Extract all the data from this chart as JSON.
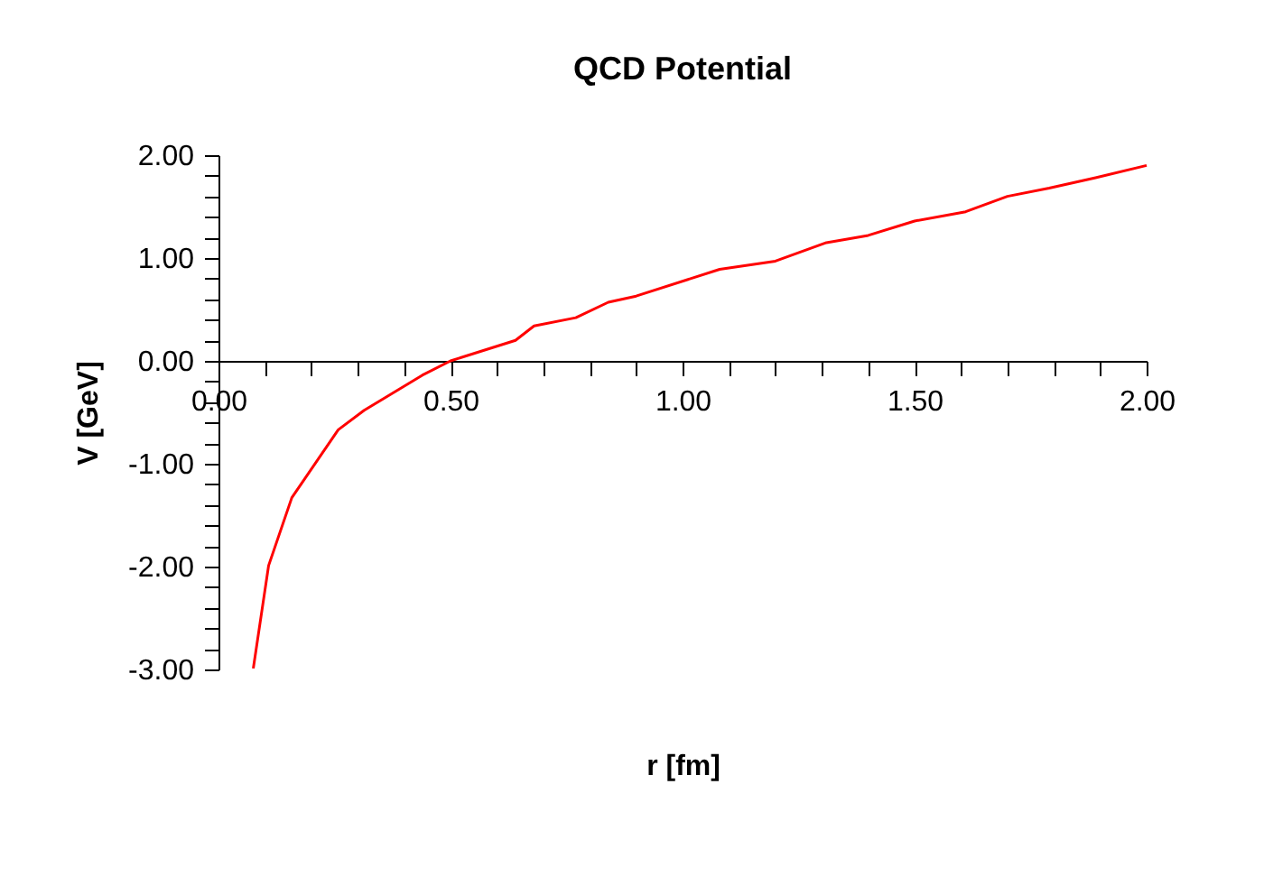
{
  "chart_data": {
    "type": "line",
    "title": "QCD Potential",
    "xlabel": "r [fm]",
    "ylabel": "V [GeV]",
    "x": [
      0.075,
      0.108,
      0.158,
      0.258,
      0.314,
      0.439,
      0.5,
      0.64,
      0.68,
      0.77,
      0.84,
      0.9,
      1.08,
      1.2,
      1.31,
      1.4,
      1.5,
      1.61,
      1.7,
      1.79,
      1.89,
      2.0
    ],
    "series": [
      {
        "color": "#ff0000",
        "values": [
          -2.99,
          -1.99,
          -1.33,
          -0.67,
          -0.48,
          -0.14,
          0.0,
          0.2,
          0.34,
          0.42,
          0.57,
          0.63,
          0.89,
          0.97,
          1.15,
          1.22,
          1.36,
          1.45,
          1.6,
          1.68,
          1.78,
          1.9
        ]
      }
    ],
    "xlim": [
      0,
      2
    ],
    "ylim": [
      -3,
      2
    ],
    "xticks": [
      {
        "value": 0,
        "label": "0.00"
      },
      {
        "value": 0.1,
        "label": null
      },
      {
        "value": 0.2,
        "label": null
      },
      {
        "value": 0.3,
        "label": null
      },
      {
        "value": 0.4,
        "label": null
      },
      {
        "value": 0.5,
        "label": "0.50"
      },
      {
        "value": 0.6,
        "label": null
      },
      {
        "value": 0.7,
        "label": null
      },
      {
        "value": 0.8,
        "label": null
      },
      {
        "value": 0.9,
        "label": null
      },
      {
        "value": 1.0,
        "label": "1.00"
      },
      {
        "value": 1.1,
        "label": null
      },
      {
        "value": 1.2,
        "label": null
      },
      {
        "value": 1.3,
        "label": null
      },
      {
        "value": 1.4,
        "label": null
      },
      {
        "value": 1.5,
        "label": "1.50"
      },
      {
        "value": 1.6,
        "label": null
      },
      {
        "value": 1.7,
        "label": null
      },
      {
        "value": 1.8,
        "label": null
      },
      {
        "value": 1.9,
        "label": null
      },
      {
        "value": 2.0,
        "label": "2.00"
      }
    ],
    "yticks": [
      {
        "value": -3,
        "label": "-3.00"
      },
      {
        "value": -2.8,
        "label": null
      },
      {
        "value": -2.6,
        "label": null
      },
      {
        "value": -2.4,
        "label": null
      },
      {
        "value": -2.2,
        "label": null
      },
      {
        "value": -2,
        "label": "-2.00"
      },
      {
        "value": -1.8,
        "label": null
      },
      {
        "value": -1.6,
        "label": null
      },
      {
        "value": -1.4,
        "label": null
      },
      {
        "value": -1.2,
        "label": null
      },
      {
        "value": -1,
        "label": "-1.00"
      },
      {
        "value": -0.8,
        "label": null
      },
      {
        "value": -0.6,
        "label": null
      },
      {
        "value": -0.4,
        "label": null
      },
      {
        "value": -0.2,
        "label": null
      },
      {
        "value": 0,
        "label": "0.00"
      },
      {
        "value": 0.2,
        "label": null
      },
      {
        "value": 0.4,
        "label": null
      },
      {
        "value": 0.6,
        "label": null
      },
      {
        "value": 0.8,
        "label": null
      },
      {
        "value": 1,
        "label": "1.00"
      },
      {
        "value": 1.2,
        "label": null
      },
      {
        "value": 1.4,
        "label": null
      },
      {
        "value": 1.6,
        "label": null
      },
      {
        "value": 1.8,
        "label": null
      },
      {
        "value": 2,
        "label": "2.00"
      }
    ],
    "grid": false,
    "marker": "none",
    "line_style": "solid"
  }
}
